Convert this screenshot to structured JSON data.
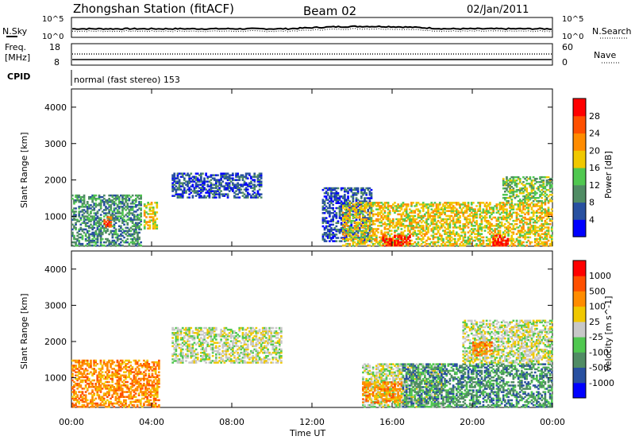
{
  "header": {
    "station": "Zhongshan Station (fitACF)",
    "beam": "Beam 02",
    "date": "02/Jan/2011"
  },
  "noise_panel": {
    "left_label": "N.Sky",
    "right_label": "N.Search",
    "left_ticks": [
      "10^5",
      "10^0"
    ],
    "right_ticks": [
      "10^5",
      "10^0"
    ]
  },
  "freq_panel": {
    "label_line1": "Freq.",
    "label_line2": "[MHz]",
    "left_ticks": [
      "18",
      "8"
    ],
    "right_label": "Nave",
    "right_ticks": [
      "60",
      "0"
    ]
  },
  "cpid": {
    "label": "CPID",
    "value": "normal (fast stereo) 153"
  },
  "chart_data": [
    {
      "type": "heatmap",
      "name": "power",
      "ylabel": "Slant Range [km]",
      "ylim": [
        180,
        4500
      ],
      "y_ticks": [
        "1000",
        "2000",
        "3000",
        "4000"
      ],
      "x_ticks": [
        "00:00",
        "04:00",
        "08:00",
        "12:00",
        "16:00",
        "20:00",
        "00:00"
      ],
      "colorbar": {
        "label": "Power [dB]",
        "ticks": [
          "28",
          "24",
          "20",
          "16",
          "12",
          "8",
          "4"
        ],
        "colors": [
          "#0000ff",
          "#2850a0",
          "#508c64",
          "#50c850",
          "#f0c800",
          "#ff8c00",
          "#ff5000",
          "#ff0000"
        ]
      },
      "echo_regions": [
        {
          "t": [
            0.0,
            3.5
          ],
          "r": [
            180,
            1600
          ],
          "level": 2
        },
        {
          "t": [
            1.6,
            2.0
          ],
          "r": [
            700,
            1000
          ],
          "level": 6
        },
        {
          "t": [
            3.6,
            4.3
          ],
          "r": [
            650,
            1400
          ],
          "level": 4
        },
        {
          "t": [
            5.0,
            9.5
          ],
          "r": [
            1500,
            2200
          ],
          "level": 1
        },
        {
          "t": [
            12.5,
            15.0
          ],
          "r": [
            300,
            1800
          ],
          "level": 1
        },
        {
          "t": [
            13.5,
            24.0
          ],
          "r": [
            180,
            1400
          ],
          "level": 4
        },
        {
          "t": [
            15.5,
            17.0
          ],
          "r": [
            180,
            500
          ],
          "level": 7
        },
        {
          "t": [
            21.0,
            21.8
          ],
          "r": [
            180,
            500
          ],
          "level": 7
        },
        {
          "t": [
            21.5,
            24.0
          ],
          "r": [
            1400,
            2100
          ],
          "level": 3
        }
      ]
    },
    {
      "type": "heatmap",
      "name": "velocity",
      "ylabel": "Slant Range [km]",
      "ylim": [
        180,
        4500
      ],
      "y_ticks": [
        "1000",
        "2000",
        "3000",
        "4000"
      ],
      "x_ticks": [
        "00:00",
        "04:00",
        "08:00",
        "12:00",
        "16:00",
        "20:00",
        "00:00"
      ],
      "xlabel": "Time UT",
      "colorbar": {
        "label": "Velocity [m s^-1]",
        "ticks": [
          "1000",
          "500",
          "100",
          "25",
          "-25",
          "-100",
          "-500",
          "-1000"
        ],
        "colors": [
          "#0000ff",
          "#2850a0",
          "#508c64",
          "#50c850",
          "#c8c8c8",
          "#f0c800",
          "#ff8c00",
          "#ff5000",
          "#ff0000"
        ]
      },
      "echo_regions": [
        {
          "t": [
            0.0,
            4.4
          ],
          "r": [
            180,
            1500
          ],
          "level": 6
        },
        {
          "t": [
            5.0,
            10.5
          ],
          "r": [
            1400,
            2400
          ],
          "level": 4
        },
        {
          "t": [
            14.5,
            18.5
          ],
          "r": [
            180,
            1400
          ],
          "level": 4
        },
        {
          "t": [
            14.5,
            16.5
          ],
          "r": [
            300,
            900
          ],
          "level": 6
        },
        {
          "t": [
            16.5,
            24.0
          ],
          "r": [
            180,
            1400
          ],
          "level": 2
        },
        {
          "t": [
            19.5,
            24.0
          ],
          "r": [
            1400,
            2600
          ],
          "level": 4
        },
        {
          "t": [
            20.0,
            21.0
          ],
          "r": [
            1600,
            2000
          ],
          "level": 6
        }
      ]
    }
  ]
}
